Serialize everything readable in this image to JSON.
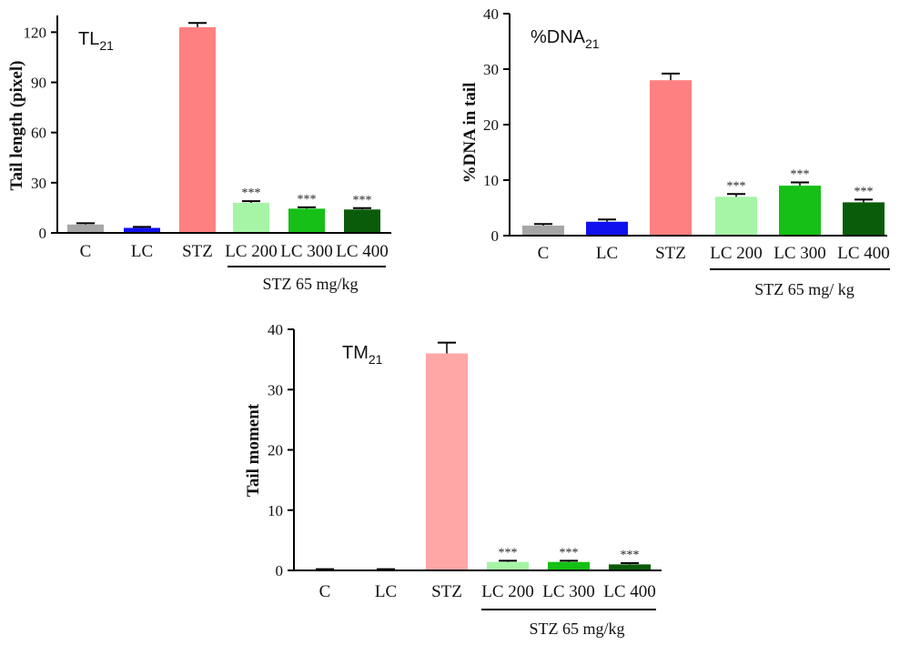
{
  "chart_data": [
    {
      "type": "bar",
      "title": "TL",
      "title_sub": "21",
      "ylabel": "Tail length (pixel)",
      "ylim": [
        0,
        130
      ],
      "yticks": [
        0,
        30,
        60,
        90,
        120
      ],
      "categories": [
        "C",
        "LC",
        "STZ",
        "LC 200",
        "LC 300",
        "LC 400"
      ],
      "values": [
        5,
        3,
        123,
        18,
        14.5,
        14
      ],
      "errors": [
        0.8,
        0.6,
        2.5,
        1.0,
        0.8,
        0.8
      ],
      "colors": [
        "#a6a6a6",
        "#1010ee",
        "#ff8080",
        "#a6f5a6",
        "#16c016",
        "#0a5c0a"
      ],
      "significance": [
        "",
        "",
        "",
        "***",
        "***",
        "***"
      ],
      "group_label": "STZ 65 mg/kg",
      "grid": false
    },
    {
      "type": "bar",
      "title": "%DNA",
      "title_sub": "21",
      "ylabel": "%DNA in  tail",
      "ylim": [
        0,
        40
      ],
      "yticks": [
        0,
        10,
        20,
        30,
        40
      ],
      "categories": [
        "C",
        "LC",
        "STZ",
        "LC 200",
        "LC 300",
        "LC 400"
      ],
      "values": [
        1.8,
        2.5,
        28,
        7,
        9,
        6
      ],
      "errors": [
        0.3,
        0.4,
        1.2,
        0.5,
        0.6,
        0.5
      ],
      "colors": [
        "#a6a6a6",
        "#1010ee",
        "#ff8080",
        "#a6f5a6",
        "#16c016",
        "#0a5c0a"
      ],
      "significance": [
        "",
        "",
        "",
        "***",
        "***",
        "***"
      ],
      "group_label": "STZ 65 mg/ kg",
      "grid": false
    },
    {
      "type": "bar",
      "title": "TM",
      "title_sub": "21",
      "ylabel": "Tail moment",
      "ylim": [
        0,
        40
      ],
      "yticks": [
        0,
        10,
        20,
        30,
        40
      ],
      "categories": [
        "C",
        "LC",
        "STZ",
        "LC 200",
        "LC 300",
        "LC 400"
      ],
      "values": [
        0.1,
        0.1,
        36,
        1.4,
        1.4,
        1.0
      ],
      "errors": [
        0.1,
        0.1,
        1.8,
        0.2,
        0.2,
        0.2
      ],
      "colors": [
        "#a6a6a6",
        "#1010ee",
        "#ffa6a6",
        "#a6f5a6",
        "#16c016",
        "#0a5c0a"
      ],
      "significance": [
        "",
        "",
        "",
        "***",
        "***",
        "***"
      ],
      "group_label": "STZ 65 mg/kg",
      "grid": false
    }
  ]
}
